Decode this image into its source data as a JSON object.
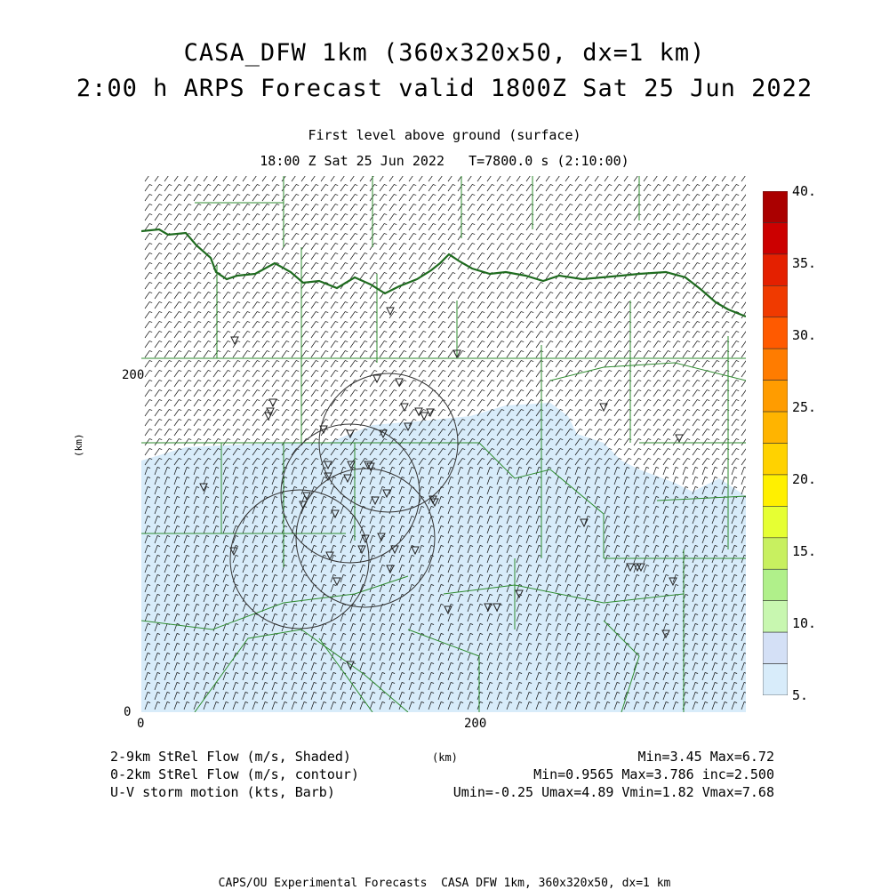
{
  "title": {
    "line1": "CASA_DFW 1km (360x320x50, dx=1 km)",
    "line2": "2:00 h ARPS Forecast valid 1800Z Sat 25 Jun 2022"
  },
  "subtitle": {
    "level": "First level above ground (surface)",
    "time": "18:00 Z Sat 25 Jun 2022   T=7800.0 s (2:10:00)"
  },
  "axes": {
    "x_ticks": [
      "0",
      "200"
    ],
    "y_ticks": [
      "0",
      "200"
    ],
    "x_label": "(km)",
    "y_label": "(km)"
  },
  "colorbar": {
    "labels": [
      "40.",
      "35.",
      "30.",
      "25.",
      "20.",
      "15.",
      "10.",
      "5."
    ],
    "colors": [
      "#aa0000",
      "#cc0000",
      "#e42000",
      "#f03a00",
      "#ff5a00",
      "#ff7c00",
      "#ff9c00",
      "#ffb400",
      "#ffd200",
      "#fff000",
      "#e6ff33",
      "#c8f060",
      "#b0f08a",
      "#c8f7b0",
      "#d4e0f6",
      "#d8ecfa"
    ]
  },
  "legend": {
    "shaded_label": "2-9km StRel Flow (m/s, Shaded)",
    "shaded_stats": "Min=3.45 Max=6.72",
    "contour_label": "0-2km StRel Flow (m/s, contour)",
    "contour_stats": "Min=0.9565 Max=3.786 inc=2.500",
    "barb_label": "U-V storm motion (kts, Barb)",
    "barb_stats": "Umin=-0.25 Umax=4.89 Vmin=1.82 Vmax=7.68",
    "km_label": "(km)"
  },
  "footer": "CAPS/OU Experimental Forecasts  CASA DFW 1km, 360x320x50, dx=1 km",
  "map": {
    "shade_color": "#d8ecfa",
    "boundary_color": "#1f6b1f",
    "county_color": "#2e8b2e",
    "radar_rings": 4
  }
}
